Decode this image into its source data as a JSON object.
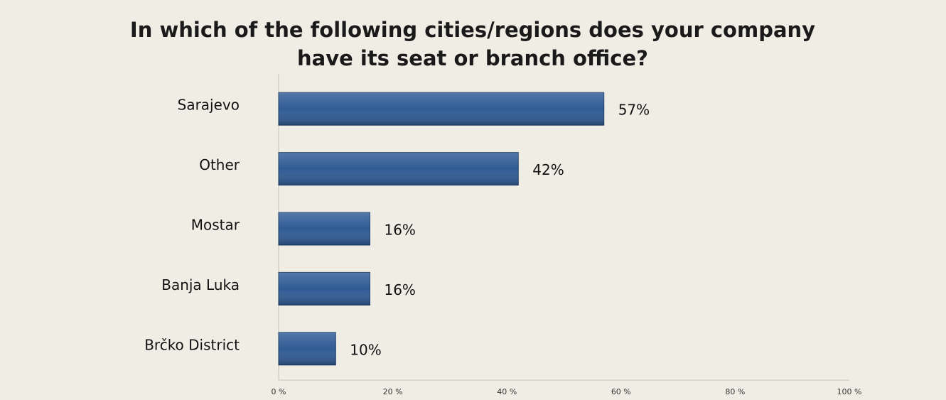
{
  "chart_data": {
    "type": "bar",
    "orientation": "horizontal",
    "title": [
      "In which of the following cities/regions does your company",
      "have its seat or branch office?"
    ],
    "categories": [
      "Sarajevo",
      "Other",
      "Mostar",
      "Banja Luka",
      "Brčko District"
    ],
    "values": [
      57,
      42,
      16,
      16,
      10
    ],
    "value_labels": [
      "57%",
      "42%",
      "16%",
      "16%",
      "10%"
    ],
    "color": "#2f5b95",
    "xlim": [
      0,
      100
    ],
    "xticks": [
      {
        "value": 0,
        "label": "0 %"
      },
      {
        "value": 20,
        "label": "20 %"
      },
      {
        "value": 40,
        "label": "40 %"
      },
      {
        "value": 60,
        "label": "60 %"
      },
      {
        "value": 80,
        "label": "80 %"
      },
      {
        "value": 100,
        "label": "100 %"
      }
    ],
    "grid": false
  }
}
